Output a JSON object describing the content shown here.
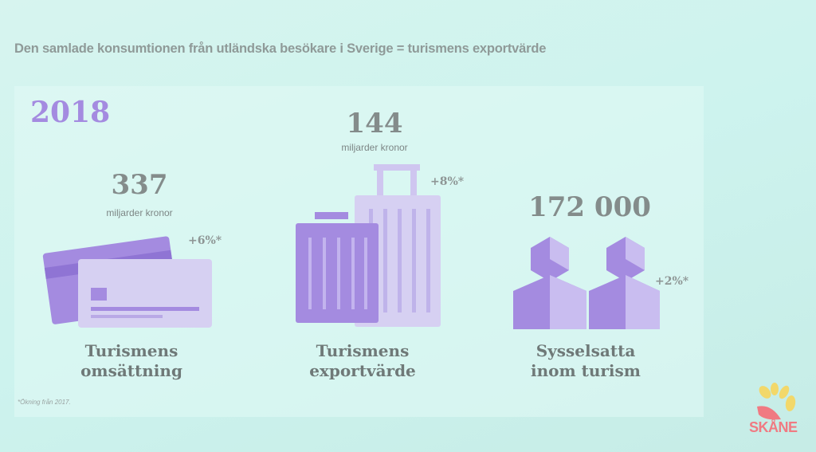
{
  "heading": "Den samlade konsumtionen från utländska besökare i Sverige = turismens exportvärde",
  "year": "2018",
  "stats": [
    {
      "value": "337",
      "unit": "miljarder kronor",
      "change": "+6%*",
      "label_line1": "Turismens",
      "label_line2": "omsättning",
      "icon": "credit-card-icon"
    },
    {
      "value": "144",
      "unit": "miljarder kronor",
      "change": "+8%*",
      "label_line1": "Turismens",
      "label_line2": "exportvärde",
      "icon": "luggage-icon"
    },
    {
      "value": "172 000",
      "change": "+2%*",
      "label_line1": "Sysselsatta",
      "label_line2": "inom turism",
      "icon": "people-icon"
    }
  ],
  "footnote": "*Ökning från 2017.",
  "logo": {
    "text": "SKÅNE",
    "icon": "skane-sun-logo"
  },
  "colors": {
    "purple": "#a48be0",
    "lavender": "#cfc6f0",
    "text": "#848c8b",
    "logo_red": "#f07a82",
    "logo_yellow": "#f2d86a"
  }
}
